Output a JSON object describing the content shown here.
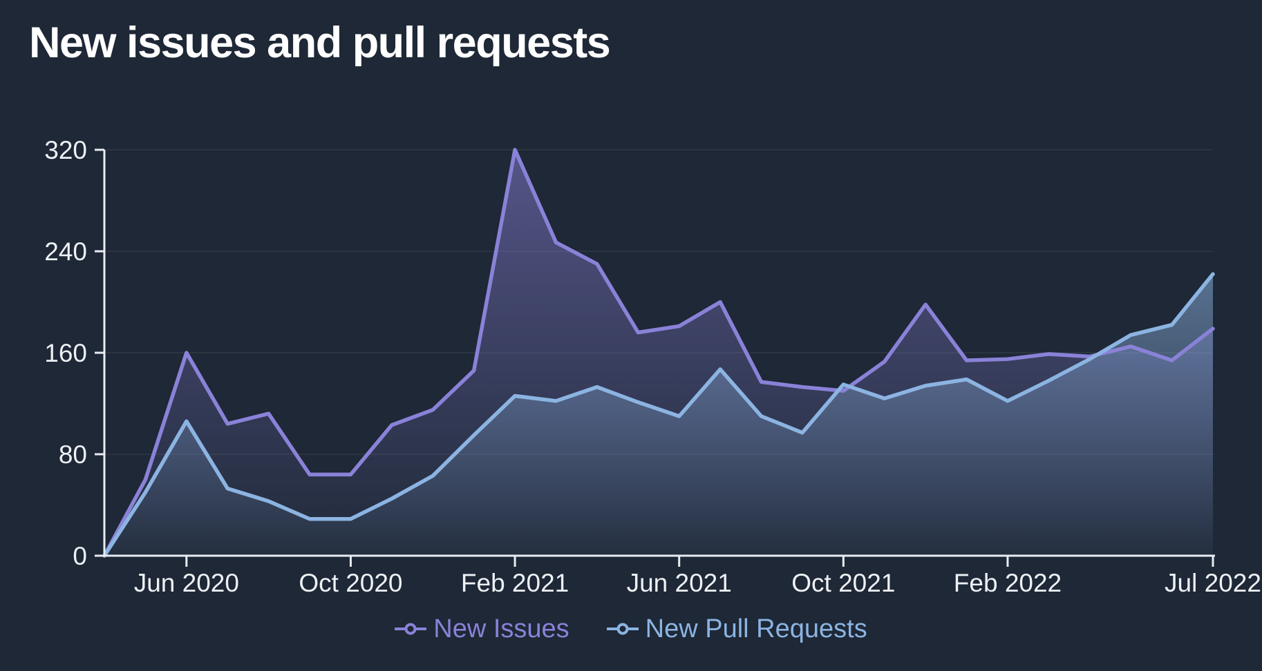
{
  "title": "New issues and pull requests",
  "colors": {
    "background": "#1e2836",
    "title": "#ffffff",
    "axis": "#e9edf2",
    "tick_label": "#eef1f5",
    "gridline": "rgba(255,255,255,0.06)"
  },
  "chart_data": {
    "type": "area",
    "title": "New issues and pull requests",
    "xlabel": "",
    "ylabel": "",
    "ylim": [
      0,
      320
    ],
    "y_ticks": [
      0,
      80,
      160,
      240,
      320
    ],
    "grid": "horizontal-only",
    "legend_position": "bottom-center",
    "x": [
      "Apr 2020",
      "May 2020",
      "Jun 2020",
      "Jul 2020",
      "Aug 2020",
      "Sep 2020",
      "Oct 2020",
      "Nov 2020",
      "Dec 2020",
      "Jan 2021",
      "Feb 2021",
      "Mar 2021",
      "Apr 2021",
      "May 2021",
      "Jun 2021",
      "Jul 2021",
      "Aug 2021",
      "Sep 2021",
      "Oct 2021",
      "Nov 2021",
      "Dec 2021",
      "Jan 2022",
      "Feb 2022",
      "Mar 2022",
      "Apr 2022",
      "May 2022",
      "Jun 2022",
      "Jul 2022"
    ],
    "x_tick_labels": [
      {
        "label": "Jun 2020",
        "index": 2
      },
      {
        "label": "Oct 2020",
        "index": 6
      },
      {
        "label": "Feb 2021",
        "index": 10
      },
      {
        "label": "Jun 2021",
        "index": 14
      },
      {
        "label": "Oct 2021",
        "index": 18
      },
      {
        "label": "Feb 2022",
        "index": 22
      },
      {
        "label": "Jul 2022",
        "index": 27
      }
    ],
    "series": [
      {
        "name": "New Issues",
        "color": "#8a82d8",
        "fill_top": "rgba(138,130,216,0.50)",
        "fill_bottom": "rgba(138,130,216,0.02)",
        "values": [
          0,
          60,
          160,
          104,
          112,
          64,
          64,
          103,
          115,
          146,
          320,
          247,
          230,
          176,
          181,
          200,
          137,
          133,
          130,
          153,
          198,
          154,
          155,
          159,
          157,
          165,
          154,
          179
        ]
      },
      {
        "name": "New Pull Requests",
        "color": "#8cb4e2",
        "fill_top": "rgba(140,180,226,0.52)",
        "fill_bottom": "rgba(140,180,226,0.03)",
        "values": [
          0,
          50,
          106,
          53,
          43,
          29,
          29,
          45,
          63,
          95,
          126,
          122,
          133,
          121,
          110,
          147,
          110,
          97,
          135,
          124,
          134,
          139,
          122,
          138,
          155,
          174,
          182,
          222
        ]
      }
    ]
  }
}
